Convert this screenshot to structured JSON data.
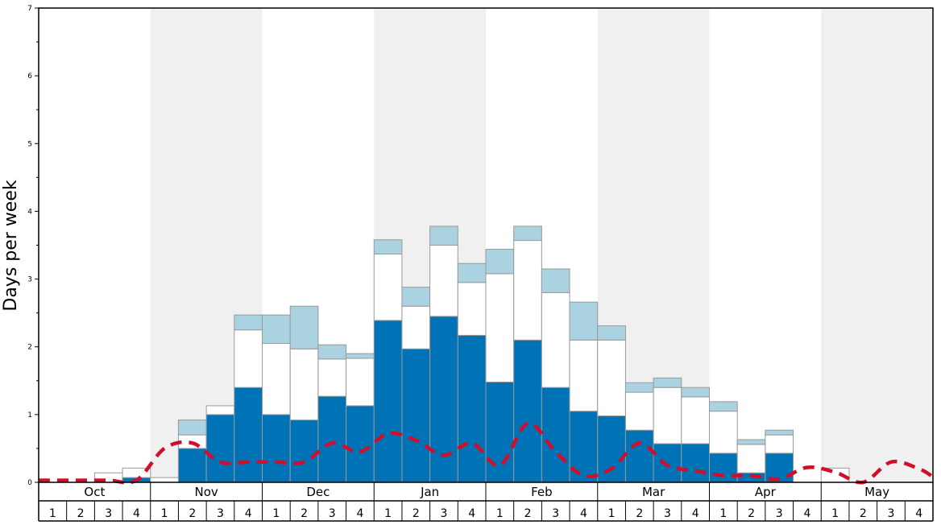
{
  "chart_data": {
    "type": "bar",
    "ylabel": "Days per week",
    "ylim": [
      0,
      7
    ],
    "yticks": [
      "0",
      "1",
      "2",
      "3",
      "4",
      "5",
      "6",
      "7"
    ],
    "months": [
      "Oct",
      "Nov",
      "Dec",
      "Jan",
      "Feb",
      "Mar",
      "Apr",
      "May"
    ],
    "weeks": [
      "1",
      "2",
      "3",
      "4"
    ],
    "stacked": true,
    "colors": {
      "dark": "#0072b6",
      "middle": "#ffffff",
      "light": "#aad2e0",
      "line": "#d0102a",
      "band": "#f0f0f0"
    },
    "series": [
      {
        "values": [
          0,
          0,
          0,
          0.07,
          0,
          0.5,
          1.0,
          1.4,
          1.0,
          0.92,
          1.27,
          1.13,
          2.39,
          1.97,
          2.45,
          2.17,
          1.48,
          2.1,
          1.4,
          1.05,
          0.98,
          0.77,
          0.57,
          0.57,
          0.43,
          0.14,
          0.43,
          0,
          0,
          0,
          0,
          0
        ]
      },
      {
        "values": [
          0,
          0,
          0.14,
          0.14,
          0.07,
          0.2,
          0.13,
          0.85,
          1.05,
          1.05,
          0.55,
          0.7,
          0.98,
          0.63,
          1.05,
          0.78,
          1.6,
          1.47,
          1.4,
          1.05,
          1.12,
          0.56,
          0.83,
          0.69,
          0.62,
          0.42,
          0.27,
          0,
          0.21,
          0,
          0,
          0
        ]
      },
      {
        "values": [
          0,
          0,
          0,
          0,
          0,
          0.22,
          0,
          0.22,
          0.42,
          0.63,
          0.21,
          0.07,
          0.21,
          0.28,
          0.28,
          0.28,
          0.36,
          0.21,
          0.35,
          0.56,
          0.21,
          0.14,
          0.14,
          0.14,
          0.14,
          0.07,
          0.07,
          0,
          0,
          0,
          0,
          0
        ]
      }
    ],
    "average_line": [
      0.03,
      0.03,
      0.03,
      0.03,
      0.5,
      0.58,
      0.3,
      0.3,
      0.3,
      0.3,
      0.58,
      0.45,
      0.72,
      0.62,
      0.4,
      0.58,
      0.25,
      0.87,
      0.45,
      0.1,
      0.2,
      0.58,
      0.25,
      0.17,
      0.1,
      0.1,
      0.05,
      0.22,
      0.15,
      0.0,
      0.3,
      0.2
    ]
  }
}
